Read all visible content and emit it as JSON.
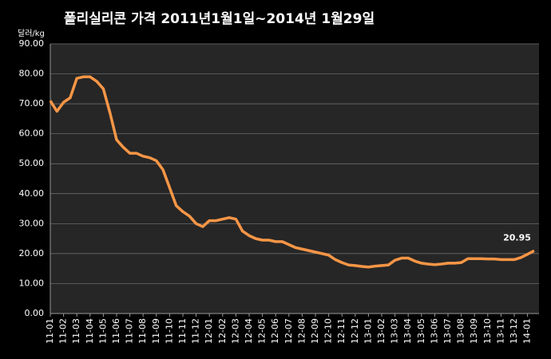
{
  "chart_data": {
    "type": "line",
    "title": "폴리실리콘 가격    2011년1월1일~2014년 1월29일",
    "y_label": "달러/kg",
    "categories": [
      "11-01",
      null,
      "11-02",
      null,
      "11-03",
      null,
      "11-04",
      null,
      "11-05",
      null,
      "11-06",
      null,
      "11-07",
      null,
      "11-08",
      null,
      "11-09",
      null,
      "11-10",
      null,
      "11-11",
      null,
      "11-12",
      null,
      "12-01",
      null,
      "12-02",
      null,
      "12-03",
      null,
      "12-04",
      null,
      "12-05",
      null,
      "12-06",
      null,
      "12-07",
      null,
      "12-08",
      null,
      "12-09",
      null,
      "12-10",
      null,
      "12-11",
      null,
      "12-12",
      null,
      "13-01",
      null,
      "13-02",
      null,
      "13-03",
      null,
      "13-04",
      null,
      "13-05",
      null,
      "13-06",
      null,
      "13-07",
      null,
      "13-08",
      null,
      "13-09",
      null,
      "13-10",
      null,
      "13-11",
      null,
      "13-12",
      null,
      "14-01",
      null
    ],
    "series": [
      {
        "name": "폴리실리콘 가격",
        "color": "#f79646",
        "values": [
          71,
          67.5,
          70.5,
          72,
          78.5,
          79,
          79,
          77.5,
          75,
          67,
          58,
          55.5,
          53.5,
          53.5,
          52.5,
          52,
          51,
          48,
          42,
          36,
          34,
          32.5,
          30,
          29,
          31,
          31,
          31.5,
          32,
          31.5,
          27.5,
          26,
          25,
          24.5,
          24.5,
          24,
          24,
          23,
          22,
          21.5,
          21,
          20.5,
          20,
          19.5,
          18,
          17,
          16.2,
          16,
          15.7,
          15.5,
          15.8,
          16,
          16.2,
          17.8,
          18.5,
          18.5,
          17.5,
          16.8,
          16.5,
          16.3,
          16.5,
          16.8,
          16.8,
          17,
          18.3,
          18.3,
          18.3,
          18.2,
          18.2,
          18,
          18,
          18,
          18.7,
          19.8,
          20.95
        ]
      }
    ],
    "ylim": [
      0,
      90
    ],
    "yticks": [
      {
        "value": 0,
        "label": "0.00"
      },
      {
        "value": 10,
        "label": "10.00"
      },
      {
        "value": 20,
        "label": "20.00"
      },
      {
        "value": 30,
        "label": "30.00"
      },
      {
        "value": 40,
        "label": "40.00"
      },
      {
        "value": 50,
        "label": "50.00"
      },
      {
        "value": 60,
        "label": "60.00"
      },
      {
        "value": 70,
        "label": "70.00"
      },
      {
        "value": 80,
        "label": "80.00"
      },
      {
        "value": 90,
        "label": "90.00"
      }
    ],
    "grid": true
  }
}
